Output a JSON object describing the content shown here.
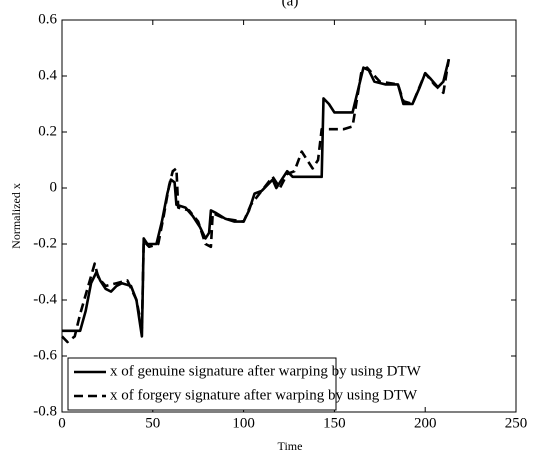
{
  "chart_data": {
    "type": "line",
    "title": "(a)",
    "x_label": "Time",
    "y_label": "Normalized x",
    "xlim": [
      0,
      250
    ],
    "xticks": [
      0,
      50,
      100,
      150,
      200,
      250
    ],
    "ylim": [
      -0.8,
      0.6
    ],
    "yticks": [
      -0.8,
      -0.6,
      -0.4,
      -0.2,
      0,
      0.2,
      0.4,
      0.6
    ],
    "legend": "lower-left",
    "series": [
      {
        "name": "x of genuine signature after warping by using DTW",
        "color": "#000000",
        "dash": "solid",
        "x": [
          0,
          10,
          13,
          16,
          19,
          21,
          24,
          27,
          30,
          33,
          38,
          41,
          44,
          45,
          47,
          52,
          55,
          58,
          60,
          62,
          63,
          68,
          72,
          76,
          79,
          81,
          82,
          85,
          90,
          95,
          100,
          103,
          106,
          110,
          113,
          116,
          118,
          121,
          124,
          127,
          130,
          143,
          144,
          147,
          150,
          160,
          163,
          166,
          169,
          172,
          178,
          185,
          188,
          193,
          197,
          200,
          203,
          207,
          210,
          213
        ],
        "values": [
          -0.51,
          -0.51,
          -0.44,
          -0.34,
          -0.3,
          -0.33,
          -0.36,
          -0.37,
          -0.35,
          -0.34,
          -0.35,
          -0.4,
          -0.53,
          -0.18,
          -0.2,
          -0.2,
          -0.12,
          -0.02,
          0.03,
          0.02,
          -0.06,
          -0.07,
          -0.1,
          -0.14,
          -0.18,
          -0.16,
          -0.08,
          -0.09,
          -0.11,
          -0.12,
          -0.12,
          -0.08,
          -0.02,
          -0.01,
          0.01,
          0.03,
          0.0,
          0.03,
          0.06,
          0.04,
          0.04,
          0.04,
          0.32,
          0.3,
          0.27,
          0.27,
          0.35,
          0.43,
          0.42,
          0.38,
          0.37,
          0.37,
          0.3,
          0.3,
          0.36,
          0.41,
          0.39,
          0.36,
          0.38,
          0.46
        ]
      },
      {
        "name": "x of forgery signature after warping by using DTW",
        "color": "#000000",
        "dash": "dashed",
        "x": [
          0,
          3,
          7,
          10,
          14,
          18,
          20,
          24,
          30,
          36,
          41,
          44,
          45,
          48,
          53,
          56,
          59,
          61,
          63,
          64,
          70,
          75,
          79,
          82,
          83,
          90,
          100,
          104,
          110,
          116,
          120,
          124,
          128,
          132,
          135,
          138,
          141,
          143,
          155,
          160,
          165,
          168,
          175,
          185,
          188,
          193,
          200,
          205,
          210,
          213
        ],
        "values": [
          -0.53,
          -0.55,
          -0.53,
          -0.45,
          -0.36,
          -0.27,
          -0.32,
          -0.35,
          -0.34,
          -0.33,
          -0.4,
          -0.5,
          -0.19,
          -0.21,
          -0.2,
          -0.1,
          0.01,
          0.06,
          0.07,
          -0.07,
          -0.08,
          -0.12,
          -0.2,
          -0.21,
          -0.09,
          -0.11,
          -0.12,
          -0.06,
          -0.01,
          0.04,
          0.0,
          0.05,
          0.06,
          0.13,
          0.1,
          0.07,
          0.1,
          0.21,
          0.21,
          0.22,
          0.42,
          0.43,
          0.38,
          0.37,
          0.31,
          0.3,
          0.41,
          0.37,
          0.34,
          0.46
        ]
      }
    ]
  }
}
